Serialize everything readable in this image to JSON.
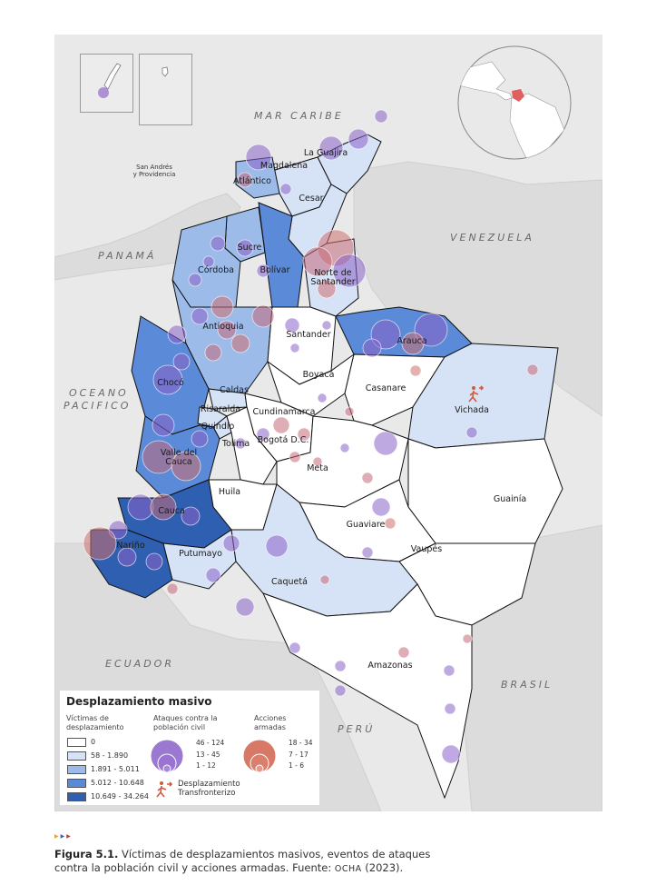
{
  "map": {
    "countries": {
      "caribbean": "MAR CARIBE",
      "venezuela": "VENEZUELA",
      "panama": "PANAMÁ",
      "pacific_1": "OCEANO",
      "pacific_2": "PACIFICO",
      "ecuador": "ECUADOR",
      "peru": "PERÚ",
      "brasil": "BRASIL"
    },
    "islands": "San Andrés\ny Providencia",
    "departments": [
      "La Guajira",
      "Magdalena",
      "Atlántico",
      "Cesar",
      "Sucre",
      "Bolívar",
      "Córdoba",
      "Norte de\nSantander",
      "Antioquia",
      "Santander",
      "Arauca",
      "Boyacá",
      "Casanare",
      "Chocó",
      "Caldas",
      "Risaralda",
      "Quindío",
      "Cundinamarca",
      "Vichada",
      "Tolima",
      "Bogotá D.C.",
      "Valle del\nCauca",
      "Meta",
      "Huila",
      "Guainía",
      "Cauca",
      "Guaviare",
      "Nariño",
      "Vaupés",
      "Putumayo",
      "Caquetá",
      "Amazonas"
    ],
    "colors": {
      "cls0": "#ffffff",
      "cls1": "#d6e2f5",
      "cls2": "#9dbbe9",
      "cls3": "#5a8ad8",
      "cls4": "#2f5fb0",
      "attacks": "#8b62c9",
      "armed_actions": "#d07070",
      "background": "#e9e9e9"
    }
  },
  "legend": {
    "title": "Desplazamiento masivo",
    "victims_header": "Víctimas de\ndesplazamiento",
    "classes": [
      "0",
      "58 - 1.890",
      "1.891 - 5.011",
      "5.012 - 10.648",
      "10.649 - 34.264"
    ],
    "attacks_header": "Ataques contra la\npoblación civil",
    "attack_sizes": [
      "46 - 124",
      "13 - 45",
      "1 - 12"
    ],
    "actions_header": "Acciones\narmadas",
    "action_sizes": [
      "18 - 34",
      "7 - 17",
      "1 - 6"
    ],
    "cross_border": "Desplazamiento\nTransfronterizo",
    "cross_border_icon": "running-person-arrow-icon"
  },
  "caption": {
    "figure": "Figura 5.1.",
    "text": " Víctimas de desplazamientos masivos, eventos de ataques contra la población civil y acciones armadas. Fuente: ",
    "source": "OCHA",
    "year": " (2023)."
  }
}
